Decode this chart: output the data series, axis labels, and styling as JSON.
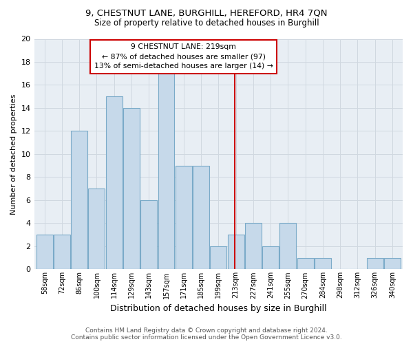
{
  "title1": "9, CHESTNUT LANE, BURGHILL, HEREFORD, HR4 7QN",
  "title2": "Size of property relative to detached houses in Burghill",
  "xlabel": "Distribution of detached houses by size in Burghill",
  "ylabel": "Number of detached properties",
  "bar_labels": [
    "58sqm",
    "72sqm",
    "86sqm",
    "100sqm",
    "114sqm",
    "129sqm",
    "143sqm",
    "157sqm",
    "171sqm",
    "185sqm",
    "199sqm",
    "213sqm",
    "227sqm",
    "241sqm",
    "255sqm",
    "270sqm",
    "284sqm",
    "298sqm",
    "312sqm",
    "326sqm",
    "340sqm"
  ],
  "bar_values": [
    3,
    3,
    12,
    7,
    15,
    14,
    6,
    17,
    9,
    9,
    2,
    3,
    4,
    2,
    4,
    1,
    1,
    0,
    0,
    1,
    1
  ],
  "bar_color": "#c6d9ea",
  "bar_edgecolor": "#7aaac8",
  "grid_color": "#d0d8e0",
  "bg_color": "#e8eef4",
  "subject_bar_index": 11,
  "annotation_text": "9 CHESTNUT LANE: 219sqm\n← 87% of detached houses are smaller (97)\n13% of semi-detached houses are larger (14) →",
  "annotation_box_color": "#cc0000",
  "footer1": "Contains HM Land Registry data © Crown copyright and database right 2024.",
  "footer2": "Contains public sector information licensed under the Open Government Licence v3.0.",
  "ylim": [
    0,
    20
  ],
  "yticks": [
    0,
    2,
    4,
    6,
    8,
    10,
    12,
    14,
    16,
    18,
    20
  ]
}
